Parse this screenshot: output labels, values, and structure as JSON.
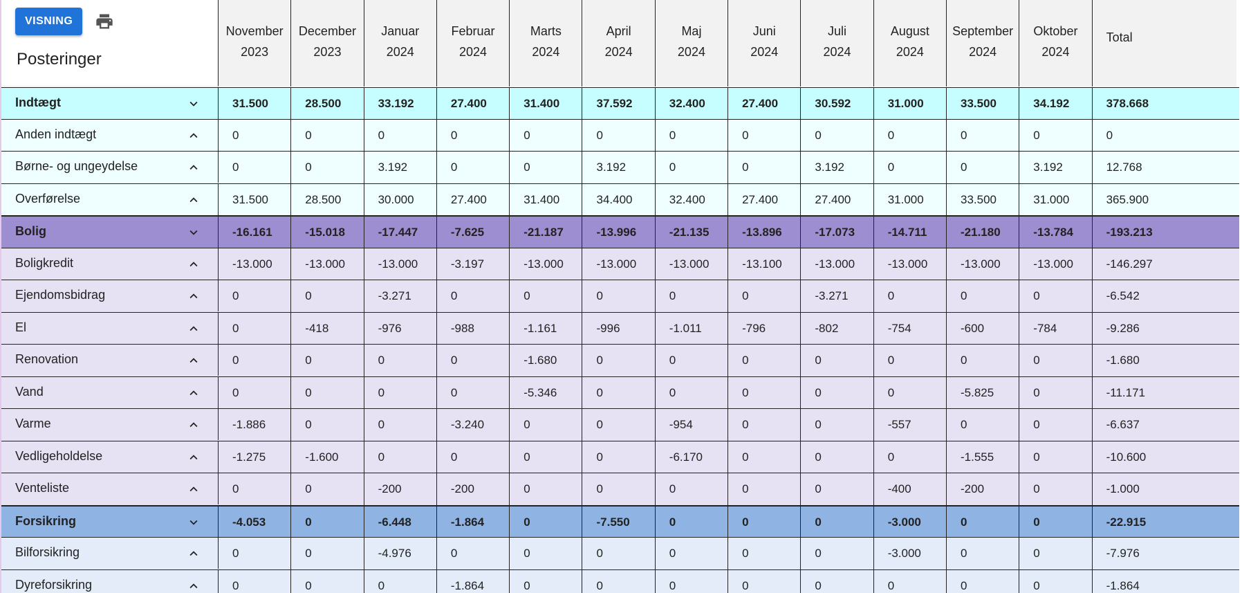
{
  "toolbar": {
    "visning_label": "VISNING",
    "print_icon": "printer-icon"
  },
  "title": "Posteringer",
  "months": [
    {
      "line1": "November",
      "line2": "2023"
    },
    {
      "line1": "December",
      "line2": "2023"
    },
    {
      "line1": "Januar",
      "line2": "2024"
    },
    {
      "line1": "Februar",
      "line2": "2024"
    },
    {
      "line1": "Marts",
      "line2": "2024"
    },
    {
      "line1": "April",
      "line2": "2024"
    },
    {
      "line1": "Maj",
      "line2": "2024"
    },
    {
      "line1": "Juni",
      "line2": "2024"
    },
    {
      "line1": "Juli",
      "line2": "2024"
    },
    {
      "line1": "August",
      "line2": "2024"
    },
    {
      "line1": "September",
      "line2": "2024"
    },
    {
      "line1": "Oktober",
      "line2": "2024"
    }
  ],
  "total_label": "Total",
  "colors": {
    "indtaegt_group": "#c6fdfe",
    "indtaegt_row": "#effefe",
    "bolig_group": "#9c8ed1",
    "bolig_row": "#e6e2f4",
    "forsikring_group": "#8fb4e3",
    "forsikring_row": "#e3ecf8"
  },
  "rows": [
    {
      "type": "group",
      "color": "indtaegt",
      "name": "Indtægt",
      "chevron": "chevron-down-icon",
      "values": [
        "31.500",
        "28.500",
        "33.192",
        "27.400",
        "31.400",
        "37.592",
        "32.400",
        "27.400",
        "30.592",
        "31.000",
        "33.500",
        "34.192"
      ],
      "total": "378.668"
    },
    {
      "type": "item",
      "color": "indtaegt",
      "name": "Anden indtægt",
      "chevron": "chevron-up-icon",
      "values": [
        "0",
        "0",
        "0",
        "0",
        "0",
        "0",
        "0",
        "0",
        "0",
        "0",
        "0",
        "0"
      ],
      "total": "0"
    },
    {
      "type": "item",
      "color": "indtaegt",
      "name": "Børne- og ungeydelse",
      "chevron": "chevron-up-icon",
      "values": [
        "0",
        "0",
        "3.192",
        "0",
        "0",
        "3.192",
        "0",
        "0",
        "3.192",
        "0",
        "0",
        "3.192"
      ],
      "total": "12.768"
    },
    {
      "type": "item",
      "color": "indtaegt",
      "name": "Overførelse",
      "chevron": "chevron-up-icon",
      "values": [
        "31.500",
        "28.500",
        "30.000",
        "27.400",
        "31.400",
        "34.400",
        "32.400",
        "27.400",
        "27.400",
        "31.000",
        "33.500",
        "31.000"
      ],
      "total": "365.900"
    },
    {
      "type": "group",
      "color": "bolig",
      "name": "Bolig",
      "chevron": "chevron-down-icon",
      "values": [
        "-16.161",
        "-15.018",
        "-17.447",
        "-7.625",
        "-21.187",
        "-13.996",
        "-21.135",
        "-13.896",
        "-17.073",
        "-14.711",
        "-21.180",
        "-13.784"
      ],
      "total": "-193.213"
    },
    {
      "type": "item",
      "color": "bolig",
      "name": "Boligkredit",
      "chevron": "chevron-up-icon",
      "values": [
        "-13.000",
        "-13.000",
        "-13.000",
        "-3.197",
        "-13.000",
        "-13.000",
        "-13.000",
        "-13.100",
        "-13.000",
        "-13.000",
        "-13.000",
        "-13.000"
      ],
      "total": "-146.297"
    },
    {
      "type": "item",
      "color": "bolig",
      "name": "Ejendomsbidrag",
      "chevron": "chevron-up-icon",
      "values": [
        "0",
        "0",
        "-3.271",
        "0",
        "0",
        "0",
        "0",
        "0",
        "-3.271",
        "0",
        "0",
        "0"
      ],
      "total": "-6.542"
    },
    {
      "type": "item",
      "color": "bolig",
      "name": "El",
      "chevron": "chevron-up-icon",
      "values": [
        "0",
        "-418",
        "-976",
        "-988",
        "-1.161",
        "-996",
        "-1.011",
        "-796",
        "-802",
        "-754",
        "-600",
        "-784"
      ],
      "total": "-9.286"
    },
    {
      "type": "item",
      "color": "bolig",
      "name": "Renovation",
      "chevron": "chevron-up-icon",
      "values": [
        "0",
        "0",
        "0",
        "0",
        "-1.680",
        "0",
        "0",
        "0",
        "0",
        "0",
        "0",
        "0"
      ],
      "total": "-1.680"
    },
    {
      "type": "item",
      "color": "bolig",
      "name": "Vand",
      "chevron": "chevron-up-icon",
      "values": [
        "0",
        "0",
        "0",
        "0",
        "-5.346",
        "0",
        "0",
        "0",
        "0",
        "0",
        "-5.825",
        "0"
      ],
      "total": "-11.171"
    },
    {
      "type": "item",
      "color": "bolig",
      "name": "Varme",
      "chevron": "chevron-up-icon",
      "values": [
        "-1.886",
        "0",
        "0",
        "-3.240",
        "0",
        "0",
        "-954",
        "0",
        "0",
        "-557",
        "0",
        "0"
      ],
      "total": "-6.637"
    },
    {
      "type": "item",
      "color": "bolig",
      "name": "Vedligeholdelse",
      "chevron": "chevron-up-icon",
      "values": [
        "-1.275",
        "-1.600",
        "0",
        "0",
        "0",
        "0",
        "-6.170",
        "0",
        "0",
        "0",
        "-1.555",
        "0"
      ],
      "total": "-10.600"
    },
    {
      "type": "item",
      "color": "bolig",
      "name": "Venteliste",
      "chevron": "chevron-up-icon",
      "values": [
        "0",
        "0",
        "-200",
        "-200",
        "0",
        "0",
        "0",
        "0",
        "0",
        "-400",
        "-200",
        "0"
      ],
      "total": "-1.000"
    },
    {
      "type": "group",
      "color": "forsikring",
      "name": "Forsikring",
      "chevron": "chevron-down-icon",
      "values": [
        "-4.053",
        "0",
        "-6.448",
        "-1.864",
        "0",
        "-7.550",
        "0",
        "0",
        "0",
        "-3.000",
        "0",
        "0"
      ],
      "total": "-22.915"
    },
    {
      "type": "item",
      "color": "forsikring",
      "name": "Bilforsikring",
      "chevron": "chevron-up-icon",
      "values": [
        "0",
        "0",
        "-4.976",
        "0",
        "0",
        "0",
        "0",
        "0",
        "0",
        "-3.000",
        "0",
        "0"
      ],
      "total": "-7.976"
    },
    {
      "type": "item",
      "color": "forsikring",
      "name": "Dyreforsikring",
      "chevron": "chevron-up-icon",
      "values": [
        "0",
        "0",
        "0",
        "-1.864",
        "0",
        "0",
        "0",
        "0",
        "0",
        "0",
        "0",
        "0"
      ],
      "total": "-1.864"
    }
  ]
}
